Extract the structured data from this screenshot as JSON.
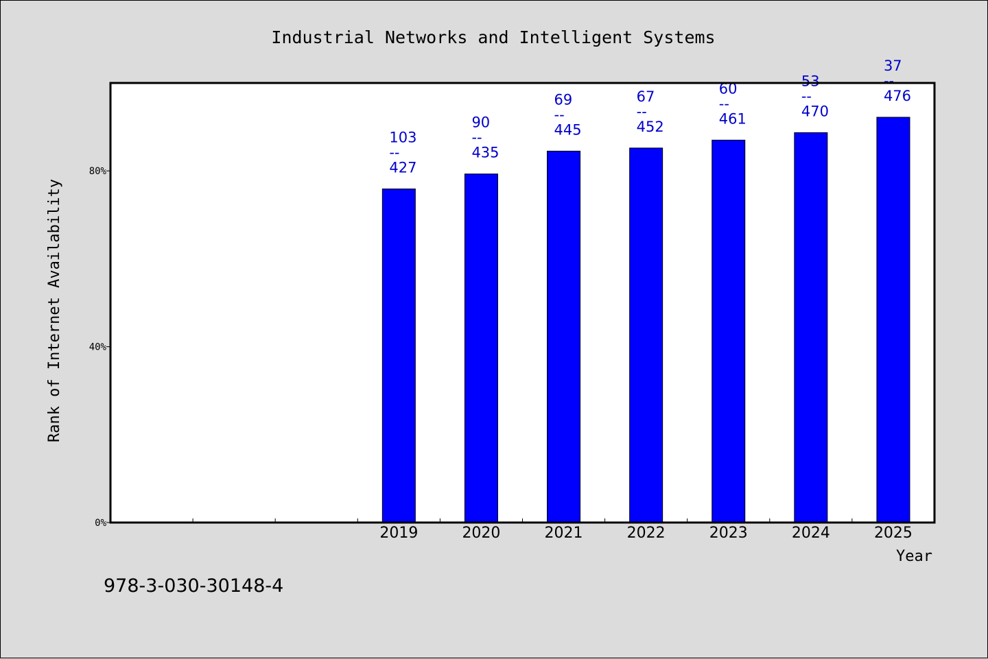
{
  "chart_data": {
    "type": "bar",
    "title": "Industrial Networks and Intelligent Systems",
    "xlabel": "Year",
    "ylabel": "Rank of Internet Availability",
    "ylim": [
      0,
      100
    ],
    "yticks": [
      {
        "value": 0,
        "label": "0%"
      },
      {
        "value": 40,
        "label": "40%"
      },
      {
        "value": 80,
        "label": "80%"
      }
    ],
    "x_slots": 10,
    "categories": [
      "2019",
      "2020",
      "2021",
      "2022",
      "2023",
      "2024",
      "2025"
    ],
    "first_category_slot": 3,
    "values": [
      75.9,
      79.3,
      84.5,
      85.2,
      87.0,
      88.7,
      92.2
    ],
    "bar_labels": [
      {
        "top": "103",
        "sep": "--",
        "bottom": "427"
      },
      {
        "top": "90",
        "sep": "--",
        "bottom": "435"
      },
      {
        "top": "69",
        "sep": "--",
        "bottom": "445"
      },
      {
        "top": "67",
        "sep": "--",
        "bottom": "452"
      },
      {
        "top": "60",
        "sep": "--",
        "bottom": "461"
      },
      {
        "top": "53",
        "sep": "--",
        "bottom": "470"
      },
      {
        "top": "37",
        "sep": "--",
        "bottom": "476"
      }
    ],
    "grid": false,
    "legend": "none",
    "colors": {
      "bar": "#0000ff",
      "label": "#0000cc",
      "background": "#dcdcdc",
      "plot": "#ffffff"
    }
  },
  "footer": {
    "isbn": "978-3-030-30148-4"
  }
}
